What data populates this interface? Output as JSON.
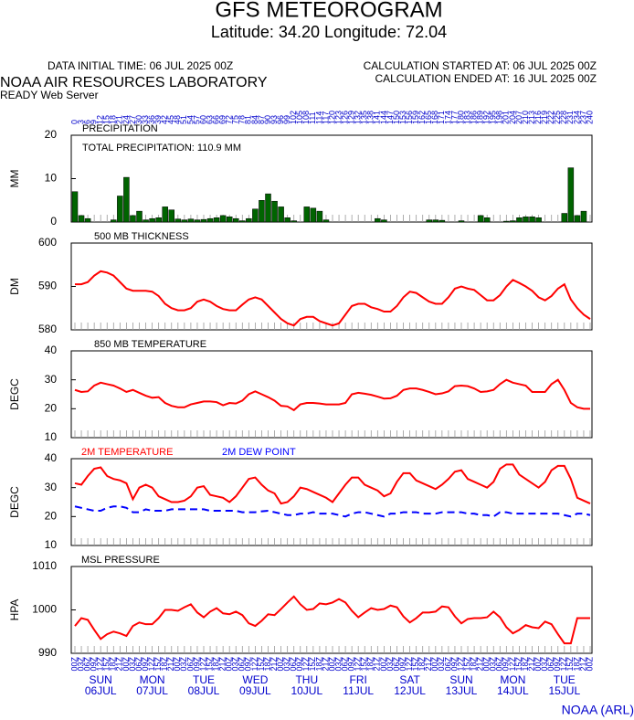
{
  "header": {
    "title": "GFS METEOROGRAM",
    "location": "Latitude: 34.20 Longitude:  72.04",
    "initial_time": "DATA INITIAL TIME: 06 JUL 2025 00Z",
    "lab": "NOAA AIR RESOURCES LABORATORY",
    "server": "READY Web Server",
    "calc_started": "CALCULATION STARTED AT: 06 JUL 2025 00Z",
    "calc_ended": "CALCULATION ENDED AT: 16 JUL 2025 00Z",
    "credit": "NOAA (ARL)"
  },
  "time_axis": {
    "xlim": [
      0,
      240
    ],
    "hours": [
      0,
      3,
      6,
      9,
      12,
      15,
      18,
      21,
      24,
      27,
      30,
      33,
      36,
      39,
      42,
      45,
      48,
      51,
      54,
      57,
      60,
      63,
      66,
      69,
      72,
      75,
      78,
      81,
      84,
      87,
      90,
      93,
      96,
      99,
      102,
      105,
      108,
      111,
      114,
      117,
      120,
      123,
      126,
      129,
      132,
      135,
      138,
      141,
      144,
      147,
      150,
      153,
      156,
      159,
      162,
      165,
      168,
      171,
      174,
      177,
      180,
      183,
      186,
      189,
      192,
      195,
      198,
      201,
      204,
      207,
      210,
      213,
      216,
      219,
      222,
      225,
      228,
      231,
      234,
      237,
      240
    ],
    "hour_labels": [
      "00Z",
      "03Z",
      "06Z",
      "09Z",
      "12Z",
      "15Z",
      "18Z",
      "21Z",
      "00Z",
      "03Z",
      "06Z",
      "09Z",
      "12Z",
      "15Z",
      "18Z",
      "21Z",
      "00Z",
      "03Z",
      "06Z",
      "09Z",
      "12Z",
      "15Z",
      "18Z",
      "21Z",
      "00Z",
      "03Z",
      "06Z",
      "09Z",
      "12Z",
      "15Z",
      "18Z",
      "21Z",
      "00Z",
      "03Z",
      "06Z",
      "09Z",
      "12Z",
      "15Z",
      "18Z",
      "21Z",
      "00Z",
      "03Z",
      "06Z",
      "09Z",
      "12Z",
      "15Z",
      "18Z",
      "21Z",
      "00Z",
      "03Z",
      "06Z",
      "09Z",
      "12Z",
      "15Z",
      "18Z",
      "21Z",
      "00Z",
      "03Z",
      "06Z",
      "09Z",
      "12Z",
      "15Z",
      "18Z",
      "21Z",
      "00Z",
      "03Z",
      "06Z",
      "09Z",
      "12Z",
      "15Z",
      "18Z",
      "21Z",
      "00Z",
      "03Z",
      "06Z",
      "09Z",
      "12Z",
      "15Z",
      "18Z",
      "21Z",
      "00Z"
    ],
    "days": [
      {
        "hour": 12,
        "day": "SUN",
        "date": "06JUL"
      },
      {
        "hour": 36,
        "day": "MON",
        "date": "07JUL"
      },
      {
        "hour": 60,
        "day": "TUE",
        "date": "08JUL"
      },
      {
        "hour": 84,
        "day": "WED",
        "date": "09JUL"
      },
      {
        "hour": 108,
        "day": "THU",
        "date": "10JUL"
      },
      {
        "hour": 132,
        "day": "FRI",
        "date": "11JUL"
      },
      {
        "hour": 156,
        "day": "SAT",
        "date": "12JUL"
      },
      {
        "hour": 180,
        "day": "SUN",
        "date": "13JUL"
      },
      {
        "hour": 204,
        "day": "MON",
        "date": "14JUL"
      },
      {
        "hour": 228,
        "day": "TUE",
        "date": "15JUL"
      }
    ]
  },
  "chart_data": [
    {
      "type": "bar",
      "title": "PRECIPITATION",
      "annotation": "TOTAL PRECIPITATION: 110.9 MM",
      "ylabel": "MM",
      "ylim": [
        0,
        20
      ],
      "yticks": [
        0,
        10,
        20
      ],
      "series": [
        {
          "color": "#006400",
          "values": [
            7,
            1.5,
            0.8,
            0,
            0,
            0,
            0.5,
            6,
            10.3,
            1.5,
            2.5,
            0.5,
            0.8,
            1,
            3.5,
            2.8,
            0.7,
            0.5,
            0.7,
            0.5,
            0.6,
            0.8,
            1,
            1.5,
            1.2,
            0.8,
            0.3,
            0.8,
            3,
            5,
            6.5,
            4.8,
            3.5,
            1,
            0.3,
            0,
            3.5,
            3.2,
            2.5,
            0.5,
            0,
            0,
            0,
            0,
            0,
            0,
            0,
            0.8,
            0.5,
            0,
            0,
            0,
            0,
            0,
            0,
            0.5,
            0.5,
            0.4,
            0,
            0,
            0.3,
            0,
            0,
            1.5,
            1,
            0,
            0,
            0.2,
            0.3,
            1,
            1.2,
            1.2,
            1,
            0,
            0,
            0,
            2,
            12.5,
            1.5,
            2.5,
            0
          ]
        }
      ]
    },
    {
      "type": "line",
      "title": "500 MB  THICKNESS",
      "ylabel": "DM",
      "ylim": [
        580,
        600
      ],
      "yticks": [
        580,
        590,
        600
      ],
      "series": [
        {
          "color": "#ff0000",
          "values": [
            590.5,
            590.5,
            591,
            592.5,
            593.5,
            593.2,
            592.5,
            591,
            589.5,
            589,
            589,
            589,
            588.8,
            587.8,
            586,
            585,
            584.5,
            584.5,
            585,
            586.5,
            587,
            586.5,
            585.5,
            584.8,
            584.5,
            584.5,
            585.8,
            587,
            587.5,
            587,
            585.5,
            584,
            582.5,
            581.5,
            581,
            582.5,
            583,
            583,
            582,
            581.5,
            581,
            581.5,
            583.5,
            585.5,
            586,
            586,
            585.2,
            584.8,
            584.2,
            584.2,
            585.5,
            587.5,
            588.8,
            588.5,
            587.5,
            586.5,
            586,
            586,
            587.5,
            589.5,
            590,
            589.5,
            589.2,
            588,
            586.8,
            586.8,
            588,
            590,
            591.5,
            590.8,
            590,
            589,
            587.5,
            586.8,
            587.8,
            589.5,
            590.5,
            587,
            585,
            583.5,
            582.5
          ]
        }
      ]
    },
    {
      "type": "line",
      "title": "850 MB  TEMPERATURE",
      "ylabel": "DEGC",
      "ylim": [
        10,
        40
      ],
      "yticks": [
        10,
        20,
        30,
        40
      ],
      "series": [
        {
          "color": "#ff0000",
          "values": [
            26.5,
            25.8,
            26,
            28,
            29,
            28.5,
            28,
            27,
            25.8,
            26.5,
            25.5,
            24.5,
            23.8,
            24,
            22,
            21,
            20.5,
            20.5,
            21.5,
            22,
            22.5,
            22.5,
            22.3,
            21.2,
            22,
            21.8,
            22.8,
            25,
            26,
            25,
            24,
            22.8,
            21,
            20.8,
            19.5,
            21.5,
            22,
            22,
            21.8,
            21.5,
            21.5,
            21.5,
            22,
            25,
            25.5,
            25.2,
            24.8,
            24.2,
            23.5,
            23.6,
            24.5,
            26.5,
            27,
            27,
            26.5,
            25.8,
            25,
            25.3,
            26,
            27.8,
            28,
            27.8,
            27,
            25.8,
            26,
            26.5,
            28.5,
            30,
            29,
            28.5,
            28,
            25.8,
            25.8,
            25.8,
            28.5,
            30,
            26.5,
            22,
            20.5,
            20,
            20
          ]
        }
      ]
    },
    {
      "type": "line",
      "ylabel": "DEGC",
      "ylim": [
        10,
        40
      ],
      "yticks": [
        10,
        20,
        30,
        40
      ],
      "series": [
        {
          "name": "2M TEMPERATURE",
          "color": "#ff0000",
          "dashed": false,
          "values": [
            31.5,
            31,
            34,
            36.5,
            37,
            34,
            33,
            32.5,
            31.5,
            26,
            30,
            31,
            30,
            27,
            26,
            25,
            25,
            25.5,
            27,
            30,
            30.5,
            27.5,
            27,
            26.5,
            25,
            27,
            30,
            33,
            33.5,
            31,
            29,
            28,
            24.5,
            25,
            27,
            30,
            29.5,
            28.5,
            27.5,
            26.5,
            25,
            28,
            31,
            33.5,
            33.5,
            31,
            30,
            29,
            27,
            28,
            32,
            35,
            35,
            32.5,
            31.5,
            30.5,
            29.5,
            31,
            33,
            35.5,
            36,
            33,
            32,
            31,
            30,
            32,
            36.5,
            38,
            38,
            34.5,
            33,
            31.5,
            30,
            32,
            36,
            37.5,
            37.5,
            33,
            26.5,
            25.5,
            24.5
          ]
        },
        {
          "name": "2M  DEW POINT",
          "color": "#0000ff",
          "dashed": true,
          "values": [
            23.5,
            23,
            22.5,
            22,
            22,
            23,
            23.5,
            23.5,
            23,
            21.5,
            21.5,
            22.5,
            22,
            22,
            22,
            22.5,
            22.5,
            22.5,
            22.5,
            22.5,
            22.5,
            22,
            22,
            22,
            22,
            22,
            21.5,
            21.5,
            21.5,
            21.8,
            22,
            21.5,
            21,
            20.5,
            20.5,
            21,
            21,
            21.5,
            21,
            21,
            21,
            20.5,
            20,
            21,
            21.5,
            21.5,
            21,
            20.5,
            20,
            21,
            21,
            21.5,
            21.5,
            21.5,
            21,
            21,
            21,
            21.5,
            21.5,
            21.5,
            21.5,
            21,
            21,
            20.5,
            20.5,
            20,
            21.5,
            21.5,
            21,
            21,
            21,
            21,
            21,
            21,
            21,
            21,
            20.5,
            20,
            21,
            21,
            20.5
          ]
        }
      ]
    },
    {
      "type": "line",
      "title": "MSL PRESSURE",
      "ylabel": "HPA",
      "ylim": [
        990,
        1010
      ],
      "yticks": [
        990,
        1000,
        1010
      ],
      "series": [
        {
          "color": "#ff0000",
          "values": [
            996.3,
            998.1,
            997.7,
            995.4,
            993.3,
            994.4,
            995,
            994.6,
            994,
            996.3,
            997.1,
            996.7,
            996.7,
            998.1,
            1000,
            1000,
            999.8,
            1000.6,
            1001.3,
            999.4,
            998.3,
            999.6,
            1000.4,
            999.2,
            999,
            999.6,
            998.8,
            996.9,
            996.3,
            997.5,
            999,
            998.8,
            1000.2,
            1001.7,
            1003.1,
            1001.3,
            1000,
            1000.2,
            1001.5,
            1001.3,
            1001.7,
            1002.5,
            1001.7,
            999.8,
            998.3,
            999.4,
            1000.4,
            1000,
            1000.2,
            1001,
            1000.6,
            998.5,
            997.1,
            998.1,
            999.4,
            999.4,
            999.6,
            1000.8,
            1000.6,
            998.5,
            996.9,
            997.9,
            998.1,
            998.1,
            998.3,
            999.6,
            998.3,
            996,
            994.6,
            995.4,
            996.5,
            996,
            995.8,
            997.3,
            996.7,
            994.4,
            992.3,
            992.3,
            998.1,
            998.1,
            998.1
          ]
        }
      ]
    }
  ]
}
